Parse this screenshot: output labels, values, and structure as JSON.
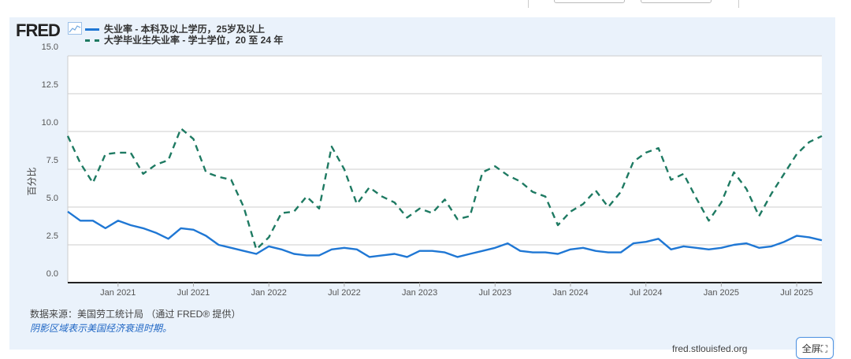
{
  "brand": "FRED",
  "ylabel": "百分比",
  "footer": {
    "source": "数据来源：美国劳工统计局 （通过 FRED® 提供）",
    "recession_note": "阴影区域表示美国经济衰退时期。",
    "site": "fred.stlouisfed.org",
    "fullscreen_label": "全屏⛶"
  },
  "colors": {
    "series1": "#1f77d4",
    "series2": "#1e7a62"
  },
  "chart_data": {
    "type": "line",
    "title": "",
    "ylabel": "百分比",
    "ylim": [
      0,
      15
    ],
    "yticks": [
      "0.0",
      "2.5",
      "5.0",
      "7.5",
      "10.0",
      "12.5",
      "15.0"
    ],
    "ytick_values": [
      0,
      2.5,
      5,
      7.5,
      10,
      12.5,
      15
    ],
    "xticks": [
      "Jan 2021",
      "Jul 2021",
      "Jan 2022",
      "Jul 2022",
      "Jan 2023",
      "Jul 2023",
      "Jan 2024",
      "Jul 2024",
      "Jan 2025",
      "Jul 2025"
    ],
    "xtick_month_index": [
      4,
      10,
      16,
      22,
      28,
      34,
      40,
      46,
      52,
      58
    ],
    "x_start": "2020-09",
    "x_end": "2025-09",
    "grid": true,
    "legend": "top-left",
    "series": [
      {
        "name": "失业率 - 本科及以上学历，25岁及以上",
        "style": "solid",
        "values": [
          4.7,
          4.1,
          4.1,
          3.6,
          4.1,
          3.8,
          3.6,
          3.3,
          2.9,
          3.6,
          3.5,
          3.1,
          2.5,
          2.3,
          2.1,
          1.9,
          2.4,
          2.2,
          1.9,
          1.8,
          1.8,
          2.2,
          2.3,
          2.2,
          1.7,
          1.8,
          1.9,
          1.7,
          2.1,
          2.1,
          2.0,
          1.7,
          1.9,
          2.1,
          2.3,
          2.6,
          2.1,
          2.0,
          2.0,
          1.9,
          2.2,
          2.3,
          2.1,
          2.0,
          2.0,
          2.6,
          2.7,
          2.9,
          2.2,
          2.4,
          2.3,
          2.2,
          2.3,
          2.5,
          2.6,
          2.3,
          2.4,
          2.7,
          3.1,
          3.0,
          2.8
        ]
      },
      {
        "name": "大学毕业生失业率 - 学士学位，20 至 24 年",
        "style": "dashed",
        "values": [
          9.7,
          7.9,
          6.6,
          8.5,
          8.6,
          8.6,
          7.2,
          7.8,
          8.1,
          10.2,
          9.5,
          7.3,
          7.0,
          6.8,
          5.0,
          2.2,
          3.0,
          4.6,
          4.7,
          5.7,
          4.9,
          9.0,
          7.5,
          5.2,
          6.3,
          5.7,
          5.3,
          4.3,
          4.9,
          4.6,
          5.5,
          4.2,
          4.4,
          7.3,
          7.7,
          7.1,
          6.7,
          6.0,
          5.7,
          3.8,
          4.7,
          5.2,
          6.1,
          5.0,
          6.0,
          8.0,
          8.6,
          8.9,
          6.8,
          7.2,
          5.6,
          4.1,
          5.3,
          7.3,
          6.2,
          4.4,
          5.9,
          7.2,
          8.5,
          9.3,
          9.7
        ]
      }
    ]
  }
}
